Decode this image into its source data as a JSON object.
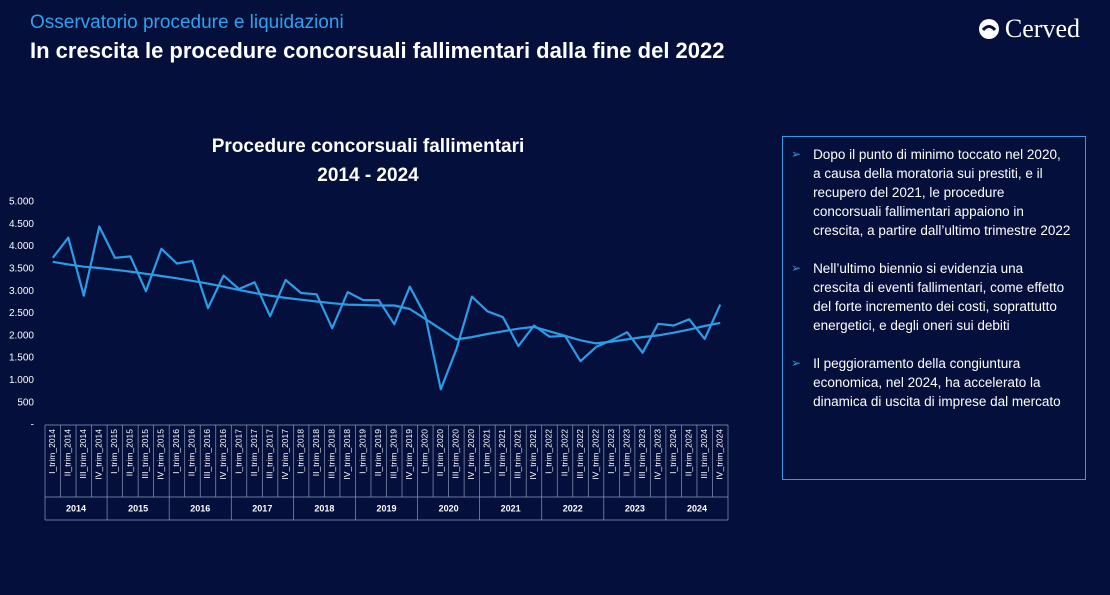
{
  "header": {
    "subtitle": "Osservatorio procedure e liquidazioni",
    "title": "In crescita le procedure concorsuali fallimentari dalla fine del 2022",
    "logo": "Cerved"
  },
  "chart_data": {
    "type": "line",
    "title": "Procedure concorsuali fallimentari",
    "subtitle": "2014 - 2024",
    "categories": [
      "I_trim_2014",
      "II_trim_2014",
      "III_trim_2014",
      "IV_trim_2014",
      "I_trim_2015",
      "II_trim_2015",
      "III_trim_2015",
      "IV_trim_2015",
      "I_trim_2016",
      "II_trim_2016",
      "III_trim_2016",
      "IV_trim_2016",
      "I_trim_2017",
      "II_trim_2017",
      "III_trim_2017",
      "IV_trim_2017",
      "I_trim_2018",
      "II_trim_2018",
      "III_trim_2018",
      "IV_trim_2018",
      "I_trim_2019",
      "II_trim_2019",
      "III_trim_2019",
      "IV_trim_2019",
      "I_trim_2020",
      "II_trim_2020",
      "III_trim_2020",
      "IV_trim_2020",
      "I_trim_2021",
      "II_trim_2021",
      "III_trim_2021",
      "IV_trim_2021",
      "I_trim_2022",
      "II_trim_2022",
      "III_trim_2022",
      "IV_trim_2022",
      "I_trim_2023",
      "II_trim_2023",
      "III_trim_2023",
      "IV_trim_2023",
      "I_trim_2024",
      "II_trim_2024",
      "III_trim_2024",
      "IV_trim_2024"
    ],
    "groups": [
      "2014",
      "2015",
      "2016",
      "2017",
      "2018",
      "2019",
      "2020",
      "2021",
      "2022",
      "2023",
      "2024"
    ],
    "series": [
      {
        "color": "#2b9ce6",
        "values": [
          3750,
          4200,
          2900,
          4450,
          3750,
          3780,
          3000,
          3950,
          3620,
          3680,
          2620,
          3350,
          3050,
          3200,
          2440,
          3250,
          2960,
          2930,
          2170,
          2980,
          2800,
          2800,
          2260,
          3100,
          2450,
          800,
          1700,
          2880,
          2550,
          2420,
          1770,
          2230,
          1980,
          2000,
          1430,
          1750,
          1900,
          2080,
          1620,
          2270,
          2230,
          2370,
          1930,
          2700
        ]
      },
      {
        "color": "#2b9ce6",
        "values": [
          3660,
          3600,
          3550,
          3520,
          3480,
          3440,
          3390,
          3340,
          3290,
          3230,
          3170,
          3100,
          3030,
          2960,
          2900,
          2850,
          2810,
          2770,
          2730,
          2700,
          2690,
          2680,
          2680,
          2600,
          2380,
          2150,
          1920,
          1970,
          2040,
          2100,
          2160,
          2200,
          2100,
          2000,
          1900,
          1830,
          1870,
          1920,
          1970,
          2010,
          2070,
          2140,
          2220,
          2290
        ]
      }
    ],
    "ylim": [
      0,
      5000
    ],
    "yticks": [
      {
        "value": 0,
        "label": "-"
      },
      500,
      {
        "value": 1000,
        "label": "1.000"
      },
      {
        "value": 1500,
        "label": "1.500"
      },
      {
        "value": 2000,
        "label": "2.000"
      },
      {
        "value": 2500,
        "label": "2.500"
      },
      {
        "value": 3000,
        "label": "3.000"
      },
      {
        "value": 3500,
        "label": "3.500"
      },
      {
        "value": 4000,
        "label": "4.000"
      },
      {
        "value": 4500,
        "label": "4.500"
      },
      {
        "value": 5000,
        "label": "5.000"
      }
    ]
  },
  "notes": {
    "bullets": [
      "Dopo il punto di minimo toccato nel 2020, a causa della moratoria sui prestiti, e il recupero del 2021, le procedure concorsuali fallimentari appaiono in crescita, a partire dall’ultimo trimestre 2022",
      "Nell’ultimo biennio si evidenzia una crescita di eventi fallimentari, come effetto del forte incremento dei costi, soprattutto energetici, e degli oneri sui debiti",
      "Il peggioramento della congiuntura economica, nel 2024, ha accelerato la dinamica di uscita di imprese dal mercato"
    ]
  }
}
